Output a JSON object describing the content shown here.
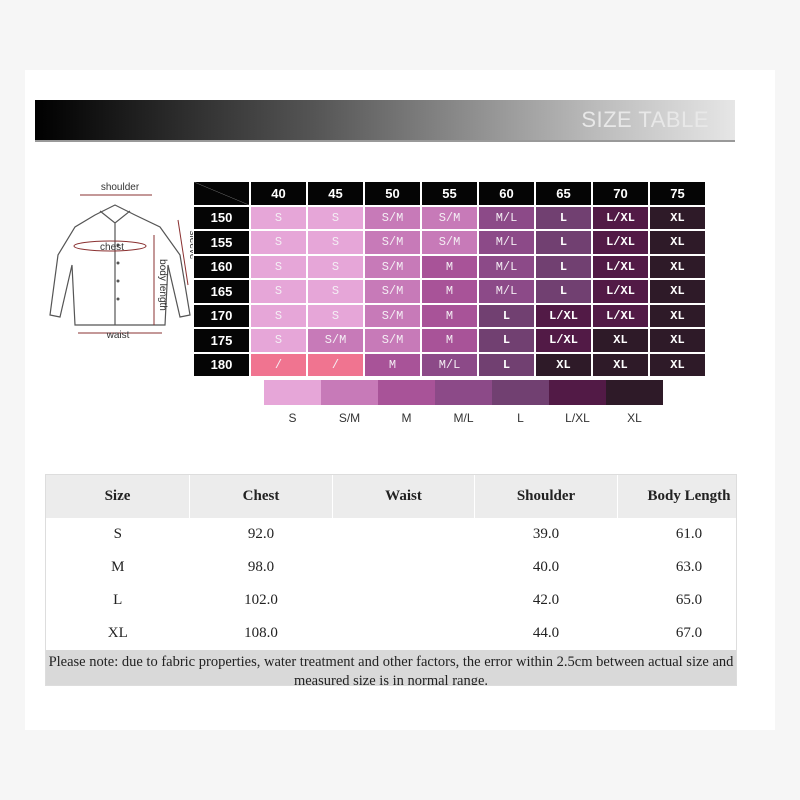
{
  "header": {
    "title": "SIZE TABLE"
  },
  "diagram": {
    "labels": [
      "shoulder",
      "chest",
      "sleeve",
      "body length",
      "waist"
    ]
  },
  "size_grid": {
    "weights": [
      "40",
      "45",
      "50",
      "55",
      "60",
      "65",
      "70",
      "75"
    ],
    "heights": [
      "150",
      "155",
      "160",
      "165",
      "170",
      "175",
      "180"
    ],
    "rows": [
      [
        "S",
        "S",
        "S/M",
        "S/M",
        "M/L",
        "L",
        "L/XL",
        "XL"
      ],
      [
        "S",
        "S",
        "S/M",
        "S/M",
        "M/L",
        "L",
        "L/XL",
        "XL"
      ],
      [
        "S",
        "S",
        "S/M",
        "M",
        "M/L",
        "L",
        "L/XL",
        "XL"
      ],
      [
        "S",
        "S",
        "S/M",
        "M",
        "M/L",
        "L",
        "L/XL",
        "XL"
      ],
      [
        "S",
        "S",
        "S/M",
        "M",
        "L",
        "L/XL",
        "L/XL",
        "XL"
      ],
      [
        "S",
        "S/M",
        "S/M",
        "M",
        "L",
        "L/XL",
        "XL",
        "XL"
      ],
      [
        "/",
        "/",
        "M",
        "M/L",
        "L",
        "XL",
        "XL",
        "XL"
      ]
    ],
    "na_color": "#f07490"
  },
  "legend": [
    {
      "label": "S",
      "color": "#e6a6d8"
    },
    {
      "label": "S/M",
      "color": "#c77ab8"
    },
    {
      "label": "M",
      "color": "#a85398"
    },
    {
      "label": "M/L",
      "color": "#8c4a88"
    },
    {
      "label": "L",
      "color": "#714071"
    },
    {
      "label": "L/XL",
      "color": "#521a46"
    },
    {
      "label": "XL",
      "color": "#2e1a28"
    }
  ],
  "table": {
    "columns": [
      "Size",
      "Chest",
      "Waist",
      "Shoulder",
      "Body Length"
    ],
    "rows": [
      [
        "S",
        "92.0",
        null,
        "39.0",
        "61.0"
      ],
      [
        "M",
        "98.0",
        null,
        "40.0",
        "63.0"
      ],
      [
        "L",
        "102.0",
        null,
        "42.0",
        "65.0"
      ],
      [
        "XL",
        "108.0",
        null,
        "44.0",
        "67.0"
      ]
    ],
    "note": "Please note: due to fabric properties, water treatment and other factors, the error within 2.5cm between actual size and measured size is in normal range."
  }
}
